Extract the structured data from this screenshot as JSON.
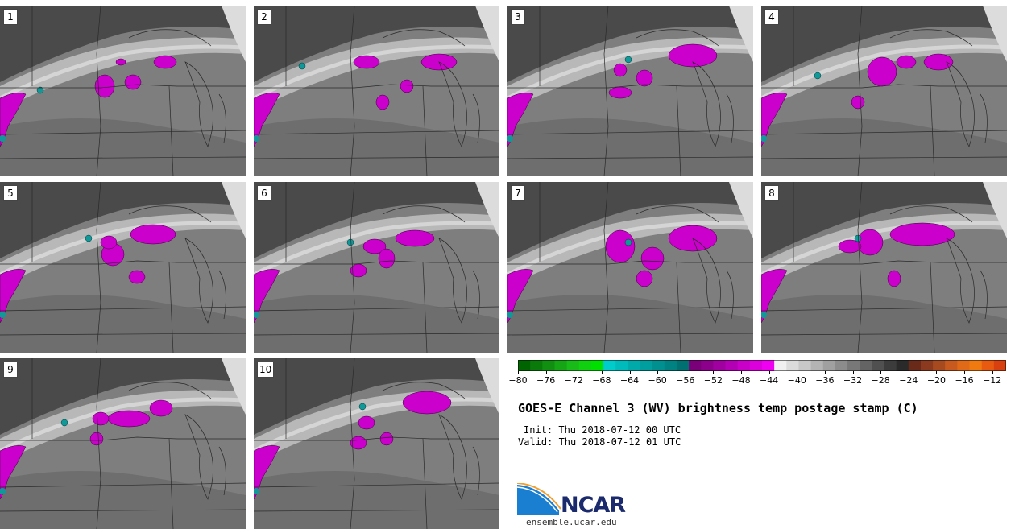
{
  "panels": [
    {
      "label": "1"
    },
    {
      "label": "2"
    },
    {
      "label": "3"
    },
    {
      "label": "4"
    },
    {
      "label": "5"
    },
    {
      "label": "6"
    },
    {
      "label": "7"
    },
    {
      "label": "8"
    },
    {
      "label": "9"
    },
    {
      "label": "10"
    }
  ],
  "colorbar": {
    "ticks": [
      "−80",
      "−76",
      "−72",
      "−68",
      "−64",
      "−60",
      "−56",
      "−52",
      "−48",
      "−44",
      "−40",
      "−36",
      "−32",
      "−28",
      "−24",
      "−20",
      "−16",
      "−12"
    ],
    "min": -80,
    "max": -10,
    "step": 2,
    "colors": [
      "#006400",
      "#0a7a0a",
      "#108f10",
      "#15a515",
      "#18bb18",
      "#10d010",
      "#00e000",
      "#00cccc",
      "#00bbbb",
      "#00aaaa",
      "#009e9e",
      "#009090",
      "#008282",
      "#007070",
      "#7a007a",
      "#8c008c",
      "#a000a0",
      "#b400b4",
      "#c800c8",
      "#dc00dc",
      "#f000f0",
      "#f0f0f0",
      "#dcdcdc",
      "#c8c8c8",
      "#b4b4b4",
      "#a0a0a0",
      "#8c8c8c",
      "#787878",
      "#646464",
      "#505050",
      "#3c3c3c",
      "#2a2a2a",
      "#6a2a1a",
      "#8b3a1f",
      "#a84a20",
      "#c85a20",
      "#e06a18",
      "#f07a10",
      "#e85a10",
      "#d84010"
    ]
  },
  "title": "GOES-E Channel 3 (WV) brightness temp postage stamp (C)",
  "init": "Init: Thu 2018-07-12 00 UTC",
  "valid": "Valid: Thu 2018-07-12 01 UTC",
  "logo": {
    "text": "NCAR",
    "url": "ensemble.ucar.edu"
  },
  "map_colors": {
    "dark": "#4a4a4a",
    "mid": "#7e7e7e",
    "light": "#b8b8b8",
    "pale": "#dcdcdc",
    "magenta": "#cc00cc",
    "teal": "#119999"
  }
}
